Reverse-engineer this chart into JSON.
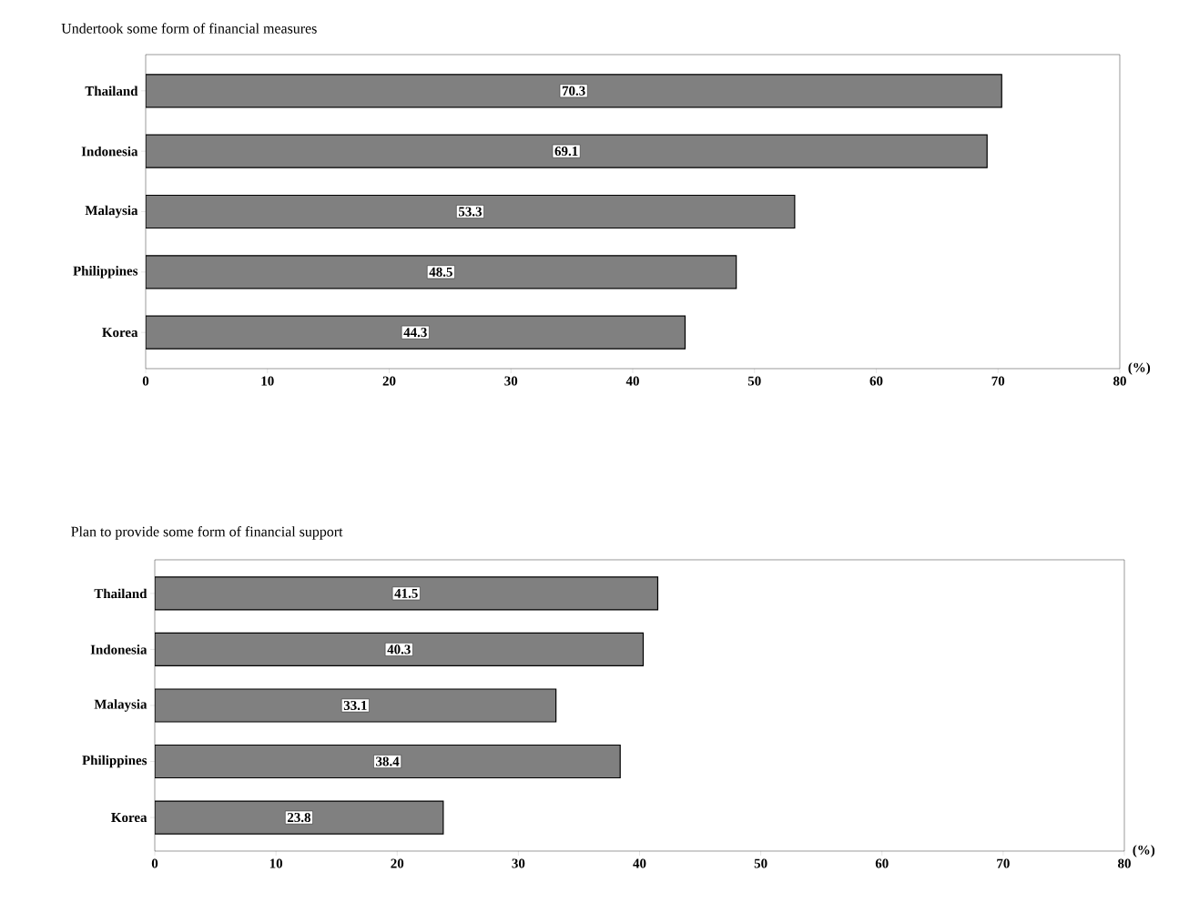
{
  "chart_data": [
    {
      "type": "bar",
      "orientation": "horizontal",
      "title": "Undertook some form of financial measures",
      "categories": [
        "Thailand",
        "Indonesia",
        "Malaysia",
        "Philippines",
        "Korea"
      ],
      "values": [
        70.3,
        69.1,
        53.3,
        48.5,
        44.3
      ],
      "color": "#808080",
      "xlim": [
        0,
        80
      ],
      "xticks": [
        0,
        10,
        20,
        30,
        40,
        50,
        60,
        70,
        80
      ],
      "xlabel": "(%)",
      "data_labels": true
    },
    {
      "type": "bar",
      "orientation": "horizontal",
      "title": "Plan to provide some form of financial support",
      "categories": [
        "Thailand",
        "Indonesia",
        "Malaysia",
        "Philippines",
        "Korea"
      ],
      "values": [
        41.5,
        40.3,
        33.1,
        38.4,
        23.8
      ],
      "color": "#808080",
      "xlim": [
        0,
        80
      ],
      "xticks": [
        0,
        10,
        20,
        30,
        40,
        50,
        60,
        70,
        80
      ],
      "xlabel": "(%)",
      "data_labels": true
    }
  ]
}
